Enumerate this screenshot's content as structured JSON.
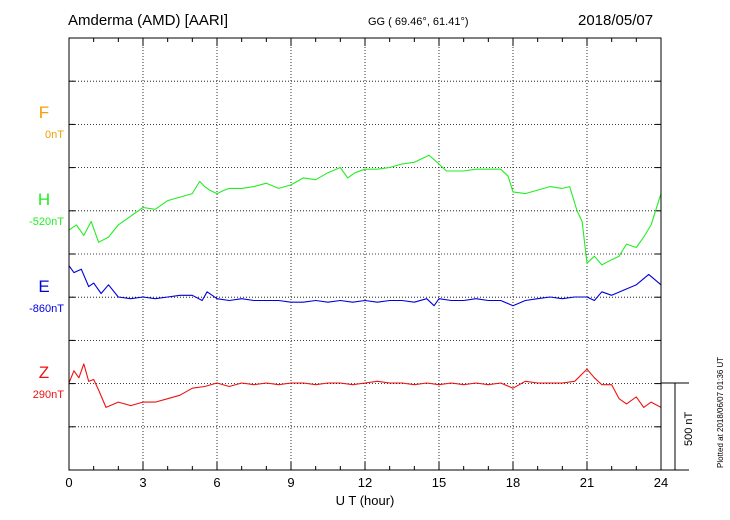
{
  "header": {
    "station": "Amderma (AMD)  [AARI]",
    "coords": "GG ( 69.46°,  61.41°)",
    "date": "2018/05/07"
  },
  "footnote": "Plotted at 2018/06/07 01:36 UT",
  "chart_data": {
    "type": "line",
    "xlabel": "U T (hour)",
    "xlim": [
      0,
      24
    ],
    "xticks": [
      "0",
      "3",
      "6",
      "9",
      "12",
      "15",
      "18",
      "21",
      "24"
    ],
    "grid": true,
    "scale_bar_label": "500 nT",
    "scale_bar_nT": 500,
    "series": [
      {
        "name": "F",
        "baseline_label": "0nT",
        "color": "#f0a000",
        "x": [],
        "y": []
      },
      {
        "name": "H",
        "baseline_label": "-520nT",
        "color": "#22ee22",
        "x": [
          0,
          0.3,
          0.6,
          0.9,
          1.2,
          1.6,
          2.0,
          2.5,
          3.0,
          3.5,
          4.0,
          4.5,
          5.0,
          5.3,
          5.5,
          5.7,
          6.0,
          6.3,
          6.5,
          7.0,
          7.5,
          8.0,
          8.5,
          9.0,
          9.5,
          10.0,
          10.5,
          11.0,
          11.3,
          11.6,
          12.0,
          12.5,
          13.0,
          13.5,
          14.0,
          14.3,
          14.6,
          15.0,
          15.3,
          15.6,
          16.0,
          16.5,
          17.0,
          17.5,
          17.8,
          18.0,
          18.5,
          19.0,
          19.5,
          20.0,
          20.3,
          20.6,
          20.8,
          21.0,
          21.3,
          21.6,
          22.0,
          22.3,
          22.6,
          23.0,
          23.3,
          23.6,
          24.0
        ],
        "y": [
          -630,
          -600,
          -660,
          -580,
          -700,
          -670,
          -600,
          -550,
          -500,
          -510,
          -460,
          -440,
          -420,
          -350,
          -380,
          -400,
          -420,
          -400,
          -390,
          -390,
          -380,
          -360,
          -390,
          -370,
          -330,
          -340,
          -300,
          -270,
          -330,
          -300,
          -280,
          -280,
          -270,
          -250,
          -240,
          -220,
          -200,
          -250,
          -290,
          -290,
          -290,
          -280,
          -280,
          -280,
          -320,
          -410,
          -420,
          -400,
          -380,
          -390,
          -380,
          -520,
          -580,
          -820,
          -780,
          -830,
          -800,
          -780,
          -710,
          -730,
          -670,
          -600,
          -420
        ]
      },
      {
        "name": "E",
        "baseline_label": "-860nT",
        "color": "#0000dd",
        "x": [
          0,
          0.2,
          0.5,
          0.8,
          1.0,
          1.3,
          1.6,
          2.0,
          2.5,
          3.0,
          3.5,
          4.0,
          4.5,
          5.0,
          5.4,
          5.6,
          6.0,
          6.5,
          7.0,
          7.5,
          8.0,
          8.5,
          9.0,
          9.5,
          10.0,
          10.5,
          11.0,
          11.5,
          12.0,
          12.5,
          13.0,
          13.5,
          14.0,
          14.5,
          14.8,
          15.0,
          15.5,
          16.0,
          16.5,
          17.0,
          17.5,
          18.0,
          18.5,
          19.0,
          19.5,
          20.0,
          20.5,
          21.0,
          21.3,
          21.6,
          22.0,
          22.5,
          23.0,
          23.5,
          24.0
        ],
        "y": [
          -680,
          -720,
          -700,
          -800,
          -780,
          -840,
          -790,
          -860,
          -870,
          -860,
          -870,
          -860,
          -850,
          -850,
          -880,
          -830,
          -870,
          -880,
          -870,
          -880,
          -880,
          -880,
          -890,
          -890,
          -880,
          -890,
          -880,
          -890,
          -880,
          -890,
          -880,
          -880,
          -890,
          -870,
          -910,
          -870,
          -880,
          -880,
          -870,
          -880,
          -880,
          -910,
          -880,
          -870,
          -860,
          -870,
          -860,
          -860,
          -880,
          -830,
          -850,
          -820,
          -790,
          -730,
          -790
        ]
      },
      {
        "name": "Z",
        "baseline_label": "290nT",
        "color": "#ee1111",
        "x": [
          0,
          0.2,
          0.4,
          0.6,
          0.8,
          1.0,
          1.2,
          1.5,
          2.0,
          2.5,
          3.0,
          3.5,
          4.0,
          4.5,
          5.0,
          5.5,
          6.0,
          6.5,
          7.0,
          7.5,
          8.0,
          8.5,
          9.0,
          9.5,
          10.0,
          10.5,
          11.0,
          11.5,
          12.0,
          12.5,
          13.0,
          13.5,
          14.0,
          14.5,
          15.0,
          15.5,
          16.0,
          16.5,
          17.0,
          17.5,
          18.0,
          18.5,
          19.0,
          19.5,
          20.0,
          20.5,
          21.0,
          21.3,
          21.6,
          22.0,
          22.3,
          22.6,
          23.0,
          23.3,
          23.6,
          24.0
        ],
        "y": [
          290,
          360,
          320,
          400,
          300,
          310,
          250,
          150,
          180,
          160,
          180,
          180,
          200,
          220,
          260,
          270,
          290,
          270,
          290,
          280,
          290,
          280,
          290,
          290,
          280,
          290,
          290,
          280,
          290,
          300,
          290,
          290,
          280,
          290,
          280,
          290,
          280,
          290,
          280,
          290,
          260,
          300,
          290,
          290,
          290,
          300,
          370,
          320,
          280,
          280,
          200,
          170,
          210,
          150,
          180,
          150
        ]
      }
    ]
  }
}
